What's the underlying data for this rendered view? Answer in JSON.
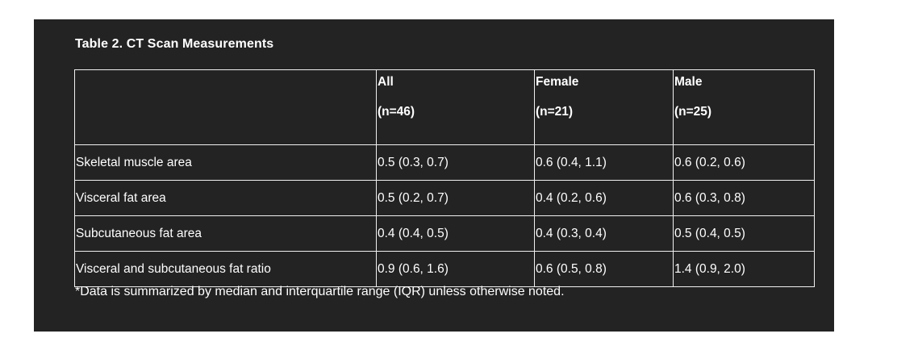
{
  "title": "Table 2. CT Scan Measurements",
  "columns": [
    {
      "label": "",
      "n": ""
    },
    {
      "label": "All",
      "n": "(n=46)"
    },
    {
      "label": "Female",
      "n": "(n=21)"
    },
    {
      "label": "Male",
      "n": "(n=25)"
    }
  ],
  "rows": [
    {
      "label": "Skeletal muscle area",
      "values": [
        "0.5 (0.3, 0.7)",
        "0.6 (0.4, 1.1)",
        "0.6 (0.2, 0.6)"
      ]
    },
    {
      "label": "Visceral fat area",
      "values": [
        "0.5 (0.2, 0.7)",
        "0.4 (0.2, 0.6)",
        "0.6 (0.3, 0.8)"
      ]
    },
    {
      "label": "Subcutaneous fat area",
      "values": [
        "0.4 (0.4, 0.5)",
        "0.4 (0.3, 0.4)",
        "0.5 (0.4, 0.5)"
      ]
    },
    {
      "label": "Visceral and subcutaneous fat ratio",
      "values": [
        "0.9 (0.6, 1.6)",
        "0.6 (0.5, 0.8)",
        "1.4 (0.9, 2.0)"
      ]
    }
  ],
  "footnote": "*Data is summarized by median and interquartile range (IQR) unless otherwise noted.",
  "colors": {
    "panel_background": "#232323",
    "text": "#ffffff",
    "border": "#f0f0f0"
  }
}
